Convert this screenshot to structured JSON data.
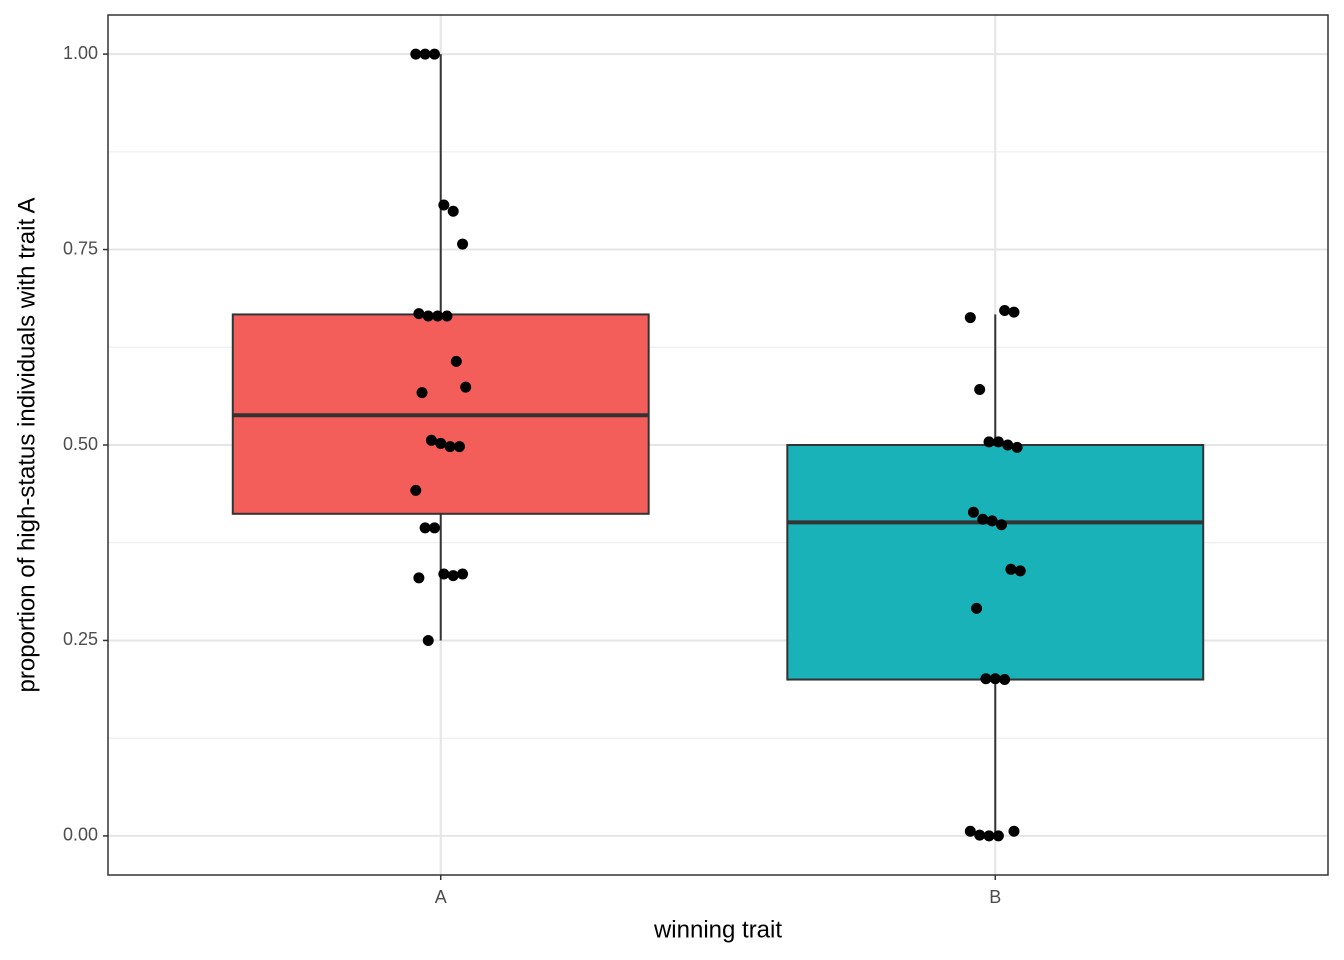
{
  "chart_data": {
    "type": "box",
    "x_label": "winning trait",
    "y_label": "proportion of high-status individuals with trait A",
    "categories": [
      "A",
      "B"
    ],
    "boxes": [
      {
        "low": 0.25,
        "q1": 0.412,
        "median": 0.538,
        "q3": 0.667,
        "high": 1.0,
        "color": "#f35e5a"
      },
      {
        "low": 0.0,
        "q1": 0.2,
        "median": 0.401,
        "q3": 0.5,
        "high": 0.667,
        "color": "#19b2b8"
      }
    ],
    "points": [
      [
        1.0,
        1.0,
        1.0,
        0.807,
        0.799,
        0.757,
        0.668,
        0.665,
        0.665,
        0.665,
        0.607,
        0.574,
        0.567,
        0.506,
        0.502,
        0.498,
        0.498,
        0.442,
        0.394,
        0.394,
        0.335,
        0.333,
        0.335,
        0.33,
        0.25
      ],
      [
        0.672,
        0.67,
        0.663,
        0.571,
        0.504,
        0.504,
        0.5,
        0.497,
        0.414,
        0.405,
        0.403,
        0.398,
        0.341,
        0.339,
        0.291,
        0.201,
        0.201,
        0.2,
        0.006,
        0.006,
        0.001,
        0.0,
        0.0
      ]
    ],
    "point_color": "#000000",
    "ylim": [
      -0.05,
      1.05
    ],
    "yticks": [
      {
        "value": 0,
        "label": "0.00"
      },
      {
        "value": 0.25,
        "label": "0.25"
      },
      {
        "value": 0.5,
        "label": "0.50"
      },
      {
        "value": 0.75,
        "label": "0.75"
      },
      {
        "value": 1,
        "label": "1.00"
      }
    ],
    "y_minor_grid": [
      0.125,
      0.375,
      0.625,
      0.875
    ],
    "grid": true
  }
}
